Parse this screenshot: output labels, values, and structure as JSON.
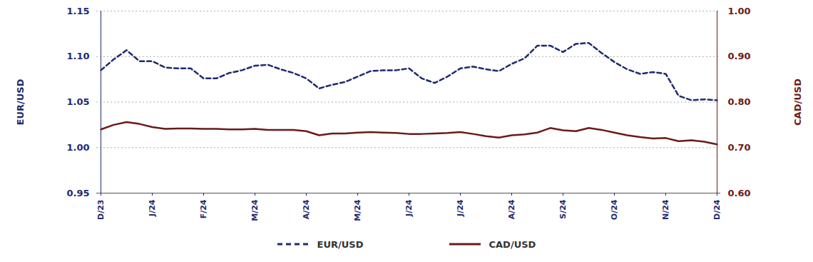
{
  "chart_data": {
    "type": "line",
    "categories": [
      "D/23",
      null,
      null,
      null,
      "J/24",
      null,
      null,
      null,
      "F/24",
      null,
      null,
      null,
      "M/24",
      null,
      null,
      null,
      "A/24",
      null,
      null,
      null,
      "M/24",
      null,
      null,
      null,
      "J/24",
      null,
      null,
      null,
      "J/24",
      null,
      null,
      null,
      "A/24",
      null,
      null,
      null,
      "S/24",
      null,
      null,
      null,
      "O/24",
      null,
      null,
      null,
      "N/24",
      null,
      null,
      null,
      "D/24"
    ],
    "series": [
      {
        "name": "EUR/USD",
        "color": "#1f2a6e",
        "line_style": "dashed",
        "axis": "y",
        "values": [
          1.085,
          1.097,
          1.107,
          1.095,
          1.095,
          1.088,
          1.087,
          1.087,
          1.076,
          1.076,
          1.082,
          1.085,
          1.09,
          1.091,
          1.086,
          1.082,
          1.076,
          1.065,
          1.069,
          1.072,
          1.078,
          1.084,
          1.085,
          1.085,
          1.087,
          1.076,
          1.071,
          1.078,
          1.087,
          1.089,
          1.086,
          1.084,
          1.092,
          1.098,
          1.112,
          1.112,
          1.105,
          1.114,
          1.115,
          1.104,
          1.094,
          1.086,
          1.081,
          1.083,
          1.081,
          1.057,
          1.052,
          1.053,
          1.052
        ]
      },
      {
        "name": "CAD/USD",
        "color": "#6b1a1a",
        "line_style": "solid",
        "axis": "y2",
        "values": [
          0.74,
          0.75,
          0.756,
          0.752,
          0.745,
          0.741,
          0.742,
          0.742,
          0.741,
          0.741,
          0.74,
          0.74,
          0.741,
          0.739,
          0.739,
          0.739,
          0.736,
          0.727,
          0.731,
          0.731,
          0.733,
          0.734,
          0.733,
          0.732,
          0.73,
          0.73,
          0.731,
          0.732,
          0.734,
          0.73,
          0.725,
          0.722,
          0.727,
          0.729,
          0.733,
          0.743,
          0.738,
          0.736,
          0.743,
          0.739,
          0.733,
          0.727,
          0.723,
          0.72,
          0.721,
          0.714,
          0.716,
          0.713,
          0.707
        ]
      }
    ],
    "ylabel": "EUR/USD",
    "y2label": "CAD/USD",
    "ylim": [
      0.95,
      1.15
    ],
    "yticks": [
      {
        "value": 0.95,
        "label": "0.95"
      },
      {
        "value": 1.0,
        "label": "1.00"
      },
      {
        "value": 1.05,
        "label": "1.05"
      },
      {
        "value": 1.1,
        "label": "1.10"
      },
      {
        "value": 1.15,
        "label": "1.15"
      }
    ],
    "y2lim": [
      0.6,
      1.0
    ],
    "y2ticks": [
      {
        "value": 0.6,
        "label": "0.60"
      },
      {
        "value": 0.7,
        "label": "0.70"
      },
      {
        "value": 0.8,
        "label": "0.80"
      },
      {
        "value": 0.9,
        "label": "0.90"
      },
      {
        "value": 1.0,
        "label": "1.00"
      }
    ],
    "grid": true,
    "legend": "bottom"
  }
}
